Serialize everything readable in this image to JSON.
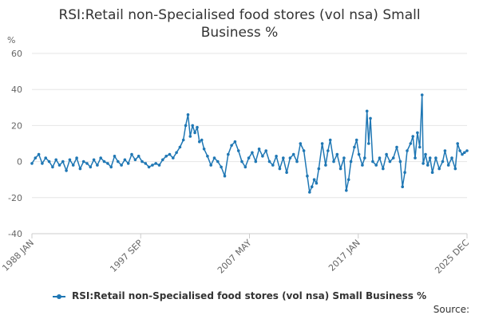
{
  "chart_data": {
    "type": "line",
    "title": "RSI:Retail non-Specialised food stores (vol nsa) Small Business %",
    "unit_label": "%",
    "ylim": [
      -40,
      60
    ],
    "y_ticks": [
      60,
      40,
      20,
      0,
      -20,
      -40
    ],
    "x_tick_labels": [
      "1988 JAN",
      "1997 SEP",
      "2007 MAY",
      "2017 JAN",
      "2025 DEC"
    ],
    "xlim": [
      1988.0,
      2025.92
    ],
    "grid": true,
    "legend": "bottom",
    "color": "#1f77b4",
    "series": [
      {
        "name": "RSI:Retail non-Specialised food stores (vol nsa) Small Business %",
        "points": [
          [
            1988.0,
            -1
          ],
          [
            1988.3,
            2
          ],
          [
            1988.6,
            4
          ],
          [
            1988.9,
            -1
          ],
          [
            1989.2,
            2
          ],
          [
            1989.5,
            0
          ],
          [
            1989.8,
            -3
          ],
          [
            1990.1,
            1
          ],
          [
            1990.4,
            -2
          ],
          [
            1990.7,
            0
          ],
          [
            1991.0,
            -5
          ],
          [
            1991.3,
            1
          ],
          [
            1991.6,
            -2
          ],
          [
            1991.9,
            2
          ],
          [
            1992.2,
            -4
          ],
          [
            1992.5,
            0
          ],
          [
            1992.8,
            -1
          ],
          [
            1993.1,
            -3
          ],
          [
            1993.4,
            1
          ],
          [
            1993.7,
            -2
          ],
          [
            1994.0,
            2
          ],
          [
            1994.3,
            0
          ],
          [
            1994.6,
            -1
          ],
          [
            1994.9,
            -3
          ],
          [
            1995.2,
            3
          ],
          [
            1995.5,
            0
          ],
          [
            1995.8,
            -2
          ],
          [
            1996.1,
            1
          ],
          [
            1996.4,
            -1
          ],
          [
            1996.7,
            4
          ],
          [
            1997.0,
            1
          ],
          [
            1997.3,
            3
          ],
          [
            1997.6,
            0
          ],
          [
            1997.9,
            -1
          ],
          [
            1998.2,
            -3
          ],
          [
            1998.5,
            -2
          ],
          [
            1998.8,
            -1
          ],
          [
            1999.1,
            -2
          ],
          [
            1999.4,
            1
          ],
          [
            1999.7,
            3
          ],
          [
            2000.0,
            4
          ],
          [
            2000.3,
            2
          ],
          [
            2000.6,
            5
          ],
          [
            2000.9,
            8
          ],
          [
            2001.2,
            12
          ],
          [
            2001.4,
            20
          ],
          [
            2001.6,
            26
          ],
          [
            2001.8,
            14
          ],
          [
            2002.0,
            20
          ],
          [
            2002.2,
            16
          ],
          [
            2002.4,
            19
          ],
          [
            2002.6,
            11
          ],
          [
            2002.8,
            12
          ],
          [
            2003.0,
            7
          ],
          [
            2003.3,
            3
          ],
          [
            2003.6,
            -2
          ],
          [
            2003.9,
            2
          ],
          [
            2004.2,
            0
          ],
          [
            2004.5,
            -3
          ],
          [
            2004.8,
            -8
          ],
          [
            2005.1,
            4
          ],
          [
            2005.4,
            9
          ],
          [
            2005.7,
            11
          ],
          [
            2006.0,
            6
          ],
          [
            2006.3,
            0
          ],
          [
            2006.6,
            -3
          ],
          [
            2006.9,
            2
          ],
          [
            2007.2,
            5
          ],
          [
            2007.5,
            0
          ],
          [
            2007.8,
            7
          ],
          [
            2008.1,
            3
          ],
          [
            2008.4,
            6
          ],
          [
            2008.7,
            0
          ],
          [
            2009.0,
            -2
          ],
          [
            2009.3,
            3
          ],
          [
            2009.6,
            -4
          ],
          [
            2009.9,
            2
          ],
          [
            2010.2,
            -6
          ],
          [
            2010.5,
            2
          ],
          [
            2010.8,
            4
          ],
          [
            2011.1,
            0
          ],
          [
            2011.4,
            10
          ],
          [
            2011.7,
            6
          ],
          [
            2012.0,
            -8
          ],
          [
            2012.2,
            -17
          ],
          [
            2012.4,
            -14
          ],
          [
            2012.6,
            -10
          ],
          [
            2012.8,
            -12
          ],
          [
            2013.0,
            -4
          ],
          [
            2013.3,
            10
          ],
          [
            2013.6,
            -2
          ],
          [
            2013.8,
            6
          ],
          [
            2014.0,
            12
          ],
          [
            2014.3,
            0
          ],
          [
            2014.6,
            4
          ],
          [
            2014.9,
            -4
          ],
          [
            2015.2,
            2
          ],
          [
            2015.4,
            -16
          ],
          [
            2015.6,
            -10
          ],
          [
            2015.8,
            0
          ],
          [
            2016.1,
            8
          ],
          [
            2016.3,
            12
          ],
          [
            2016.5,
            4
          ],
          [
            2016.8,
            -2
          ],
          [
            2017.0,
            2
          ],
          [
            2017.2,
            28
          ],
          [
            2017.35,
            10
          ],
          [
            2017.5,
            24
          ],
          [
            2017.7,
            0
          ],
          [
            2018.0,
            -2
          ],
          [
            2018.3,
            2
          ],
          [
            2018.6,
            -4
          ],
          [
            2018.9,
            4
          ],
          [
            2019.2,
            0
          ],
          [
            2019.5,
            2
          ],
          [
            2019.8,
            8
          ],
          [
            2020.1,
            0
          ],
          [
            2020.3,
            -14
          ],
          [
            2020.5,
            -6
          ],
          [
            2020.7,
            6
          ],
          [
            2021.0,
            10
          ],
          [
            2021.2,
            14
          ],
          [
            2021.4,
            2
          ],
          [
            2021.6,
            16
          ],
          [
            2021.8,
            8
          ],
          [
            2022.0,
            37
          ],
          [
            2022.1,
            -1
          ],
          [
            2022.3,
            4
          ],
          [
            2022.5,
            -2
          ],
          [
            2022.7,
            2
          ],
          [
            2022.9,
            -6
          ],
          [
            2023.2,
            2
          ],
          [
            2023.5,
            -4
          ],
          [
            2023.8,
            0
          ],
          [
            2024.0,
            6
          ],
          [
            2024.3,
            -2
          ],
          [
            2024.6,
            2
          ],
          [
            2024.9,
            -4
          ],
          [
            2025.1,
            10
          ],
          [
            2025.3,
            6
          ],
          [
            2025.5,
            4
          ],
          [
            2025.7,
            5
          ],
          [
            2025.92,
            6
          ]
        ]
      }
    ]
  },
  "source_label": "Source:"
}
